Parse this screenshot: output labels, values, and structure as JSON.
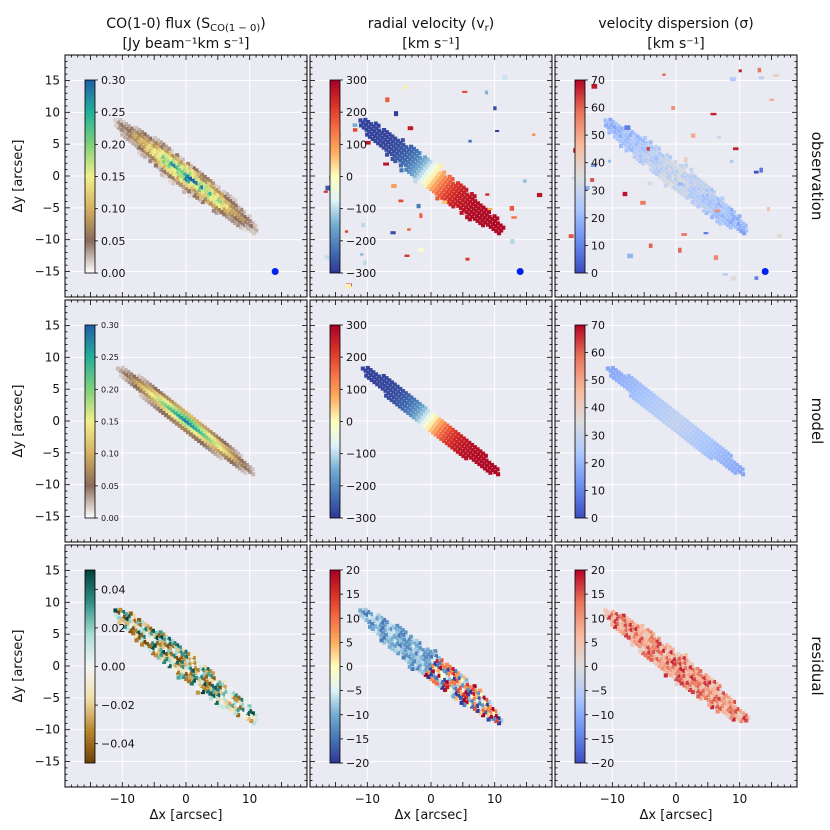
{
  "chart_data": {
    "type": "heatmap",
    "x_range": [
      -19,
      19
    ],
    "y_range": [
      -19,
      19
    ],
    "x_ticks": [
      -10,
      0,
      10
    ],
    "y_ticks": [
      -15,
      -10,
      -5,
      0,
      5,
      10,
      15
    ],
    "xlabel_main": "Δx",
    "xlabel_unit": " [arcsec]",
    "ylabel_main": "Δy",
    "ylabel_unit": " [arcsec]",
    "grid": true,
    "columns": [
      {
        "title_line1": "CO(1-0) flux (S",
        "title_sub": "CO(1 − 0)",
        "title_close": ")",
        "title_line2": "[Jy beam⁻¹km s⁻¹]"
      },
      {
        "title_line1": "radial velocity (v",
        "title_sub": "r",
        "title_close": ")",
        "title_line2": "[km s⁻¹]"
      },
      {
        "title_line1": "velocity dispersion (σ)",
        "title_sub": "",
        "title_close": "",
        "title_line2": "[km s⁻¹]"
      }
    ],
    "rows": [
      "observation",
      "model",
      "residual"
    ],
    "panels": [
      [
        {
          "colorbar": "flux",
          "cb_range": [
            0,
            0.3
          ],
          "cb_ticks": [
            "0.30",
            "0.25",
            "0.20",
            "0.15",
            "0.10",
            "0.05",
            "0.00"
          ],
          "beam": [
            14,
            -15
          ],
          "noise": false
        },
        {
          "colorbar": "vel",
          "cb_range": [
            -300,
            300
          ],
          "cb_ticks": [
            "300",
            "200",
            "100",
            "0",
            "−100",
            "−200",
            "−300"
          ],
          "beam": [
            14,
            -15
          ],
          "noise": true
        },
        {
          "colorbar": "disp",
          "cb_range": [
            0,
            70
          ],
          "cb_ticks": [
            "70",
            "60",
            "50",
            "40",
            "30",
            "20",
            "10",
            "0"
          ],
          "beam": [
            14,
            -15
          ],
          "noise": true
        }
      ],
      [
        {
          "colorbar": "flux",
          "cb_range": [
            0,
            0.3
          ],
          "cb_ticks": [
            "0.30",
            "0.25",
            "0.20",
            "0.15",
            "0.10",
            "0.05",
            "0.00"
          ],
          "noise": false
        },
        {
          "colorbar": "vel",
          "cb_range": [
            -300,
            300
          ],
          "cb_ticks": [
            "300",
            "200",
            "100",
            "0",
            "−100",
            "−200",
            "−300"
          ],
          "noise": false
        },
        {
          "colorbar": "disp",
          "cb_range": [
            0,
            70
          ],
          "cb_ticks": [
            "70",
            "60",
            "50",
            "40",
            "30",
            "20",
            "10",
            "0"
          ],
          "noise": false
        }
      ],
      [
        {
          "colorbar": "resflux",
          "cb_range": [
            -0.05,
            0.05
          ],
          "cb_ticks": [
            "0.04",
            "0.02",
            "0.00",
            "−0.02",
            "−0.04"
          ],
          "noise": false
        },
        {
          "colorbar": "resvel",
          "cb_range": [
            -20,
            20
          ],
          "cb_ticks": [
            "20",
            "15",
            "10",
            "5",
            "0",
            "−5",
            "−10",
            "−15",
            "−20"
          ],
          "noise": false
        },
        {
          "colorbar": "resdisp",
          "cb_range": [
            -20,
            20
          ],
          "cb_ticks": [
            "20",
            "15",
            "10",
            "5",
            "0",
            "−5",
            "−10",
            "−15",
            "−20"
          ],
          "noise": false
        }
      ]
    ],
    "colormaps": {
      "flux": [
        "#ffffff",
        "#8a6b5c",
        "#d4b060",
        "#f2f08a",
        "#7fd07a",
        "#22b09a",
        "#1f5fa8"
      ],
      "vel": [
        "#313695",
        "#4575b4",
        "#74add1",
        "#e0f3f8",
        "#ffffbf",
        "#fdae61",
        "#f46d43",
        "#d73027",
        "#a50026"
      ],
      "disp": [
        "#3b4cc0",
        "#6b8df0",
        "#aac7fd",
        "#dddddd",
        "#f7b89c",
        "#e7745b",
        "#b40426"
      ],
      "resflux": [
        "#6e3f0a",
        "#b8862c",
        "#f0deaa",
        "#f5f5f5",
        "#a8ddd2",
        "#2f8f86",
        "#00413a"
      ],
      "resvel": [
        "#313695",
        "#4575b4",
        "#74add1",
        "#e0f3f8",
        "#ffffbf",
        "#fdae61",
        "#f46d43",
        "#d73027",
        "#a50026"
      ],
      "resdisp": [
        "#3b4cc0",
        "#6b8df0",
        "#aac7fd",
        "#dddddd",
        "#f7b89c",
        "#e7745b",
        "#b40426"
      ]
    },
    "galaxy": {
      "center": [
        0,
        0
      ],
      "position_angle_deg": 142,
      "obs_major": 14.5,
      "obs_minor": 2.0,
      "model_major": 14,
      "model_minor": 1.5
    }
  }
}
